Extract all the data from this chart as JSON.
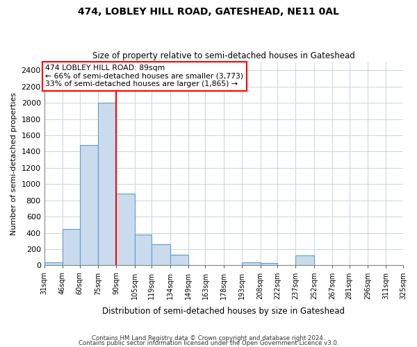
{
  "title": "474, LOBLEY HILL ROAD, GATESHEAD, NE11 0AL",
  "subtitle": "Size of property relative to semi-detached houses in Gateshead",
  "xlabel": "Distribution of semi-detached houses by size in Gateshead",
  "ylabel": "Number of semi-detached properties",
  "bar_color": "#c9dbed",
  "bar_edge_color": "#5b9bd5",
  "grid_color": "#c8d4e0",
  "vline_x": 90,
  "vline_color": "red",
  "annotation_title": "474 LOBLEY HILL ROAD: 89sqm",
  "annotation_line1": "← 66% of semi-detached houses are smaller (3,773)",
  "annotation_line2": "33% of semi-detached houses are larger (1,865) →",
  "annotation_box_color": "white",
  "annotation_box_edge": "red",
  "footer1": "Contains HM Land Registry data © Crown copyright and database right 2024.",
  "footer2": "Contains public sector information licensed under the Open Government Licence v3.0.",
  "bin_edges": [
    31,
    46,
    60,
    75,
    90,
    105,
    119,
    134,
    149,
    163,
    178,
    193,
    208,
    222,
    237,
    252,
    267,
    281,
    296,
    311,
    325
  ],
  "bin_labels": [
    "31sqm",
    "46sqm",
    "60sqm",
    "75sqm",
    "90sqm",
    "105sqm",
    "119sqm",
    "134sqm",
    "149sqm",
    "163sqm",
    "178sqm",
    "193sqm",
    "208sqm",
    "222sqm",
    "237sqm",
    "252sqm",
    "267sqm",
    "281sqm",
    "296sqm",
    "311sqm",
    "325sqm"
  ],
  "counts": [
    40,
    450,
    1480,
    2000,
    880,
    375,
    255,
    130,
    0,
    0,
    0,
    40,
    30,
    0,
    120,
    0,
    0,
    0,
    0,
    0
  ],
  "ylim": [
    0,
    2500
  ],
  "yticks": [
    0,
    200,
    400,
    600,
    800,
    1000,
    1200,
    1400,
    1600,
    1800,
    2000,
    2200,
    2400
  ]
}
